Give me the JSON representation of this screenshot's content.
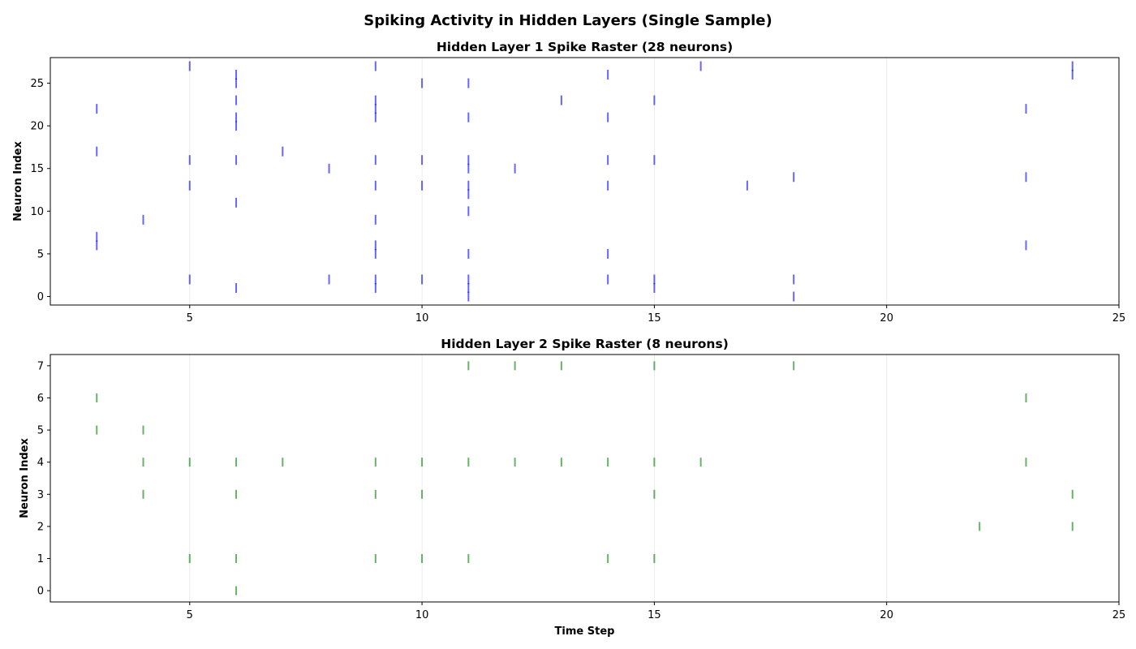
{
  "suptitle": "Spiking Activity in Hidden Layers (Single Sample)",
  "chart_data": [
    {
      "type": "scatter",
      "title": "Hidden Layer 1 Spike Raster (28 neurons)",
      "xlabel": "",
      "ylabel": "Neuron Index",
      "marker": "|",
      "color": "#0000ff",
      "xlim": [
        2,
        25
      ],
      "ylim": [
        -1,
        28
      ],
      "xticks": [
        5,
        10,
        15,
        20,
        25
      ],
      "yticks": [
        0,
        5,
        10,
        15,
        20,
        25
      ],
      "grid_x": true,
      "spikes": [
        [
          3,
          6
        ],
        [
          3,
          7
        ],
        [
          3,
          17
        ],
        [
          3,
          22
        ],
        [
          4,
          9
        ],
        [
          5,
          2
        ],
        [
          5,
          13
        ],
        [
          5,
          16
        ],
        [
          5,
          27
        ],
        [
          6,
          1
        ],
        [
          6,
          11
        ],
        [
          6,
          16
        ],
        [
          6,
          20
        ],
        [
          6,
          21
        ],
        [
          6,
          23
        ],
        [
          6,
          25
        ],
        [
          6,
          26
        ],
        [
          7,
          17
        ],
        [
          8,
          2
        ],
        [
          8,
          15
        ],
        [
          9,
          1
        ],
        [
          9,
          2
        ],
        [
          9,
          5
        ],
        [
          9,
          6
        ],
        [
          9,
          9
        ],
        [
          9,
          13
        ],
        [
          9,
          16
        ],
        [
          9,
          21
        ],
        [
          9,
          22
        ],
        [
          9,
          23
        ],
        [
          9,
          27
        ],
        [
          10,
          2
        ],
        [
          10,
          13
        ],
        [
          10,
          16
        ],
        [
          10,
          25
        ],
        [
          11,
          0
        ],
        [
          11,
          1
        ],
        [
          11,
          2
        ],
        [
          11,
          5
        ],
        [
          11,
          10
        ],
        [
          11,
          12
        ],
        [
          11,
          13
        ],
        [
          11,
          15
        ],
        [
          11,
          16
        ],
        [
          11,
          21
        ],
        [
          11,
          25
        ],
        [
          12,
          15
        ],
        [
          13,
          23
        ],
        [
          14,
          2
        ],
        [
          14,
          5
        ],
        [
          14,
          13
        ],
        [
          14,
          16
        ],
        [
          14,
          21
        ],
        [
          14,
          26
        ],
        [
          15,
          1
        ],
        [
          15,
          2
        ],
        [
          15,
          16
        ],
        [
          15,
          23
        ],
        [
          16,
          27
        ],
        [
          17,
          13
        ],
        [
          18,
          0
        ],
        [
          18,
          2
        ],
        [
          18,
          14
        ],
        [
          23,
          6
        ],
        [
          23,
          14
        ],
        [
          23,
          22
        ],
        [
          24,
          26
        ],
        [
          24,
          27
        ]
      ]
    },
    {
      "type": "scatter",
      "title": "Hidden Layer 2 Spike Raster (8 neurons)",
      "xlabel": "Time Step",
      "ylabel": "Neuron Index",
      "marker": "|",
      "color": "#008000",
      "xlim": [
        2,
        25
      ],
      "ylim": [
        -0.35,
        7.35
      ],
      "xticks": [
        5,
        10,
        15,
        20,
        25
      ],
      "yticks": [
        0,
        1,
        2,
        3,
        4,
        5,
        6,
        7
      ],
      "grid_x": true,
      "spikes": [
        [
          3,
          5
        ],
        [
          3,
          6
        ],
        [
          4,
          3
        ],
        [
          4,
          4
        ],
        [
          4,
          5
        ],
        [
          5,
          1
        ],
        [
          5,
          4
        ],
        [
          6,
          0
        ],
        [
          6,
          1
        ],
        [
          6,
          3
        ],
        [
          6,
          4
        ],
        [
          7,
          4
        ],
        [
          9,
          1
        ],
        [
          9,
          3
        ],
        [
          9,
          4
        ],
        [
          10,
          1
        ],
        [
          10,
          3
        ],
        [
          10,
          4
        ],
        [
          11,
          1
        ],
        [
          11,
          4
        ],
        [
          11,
          7
        ],
        [
          12,
          4
        ],
        [
          12,
          7
        ],
        [
          13,
          4
        ],
        [
          13,
          7
        ],
        [
          14,
          1
        ],
        [
          14,
          4
        ],
        [
          15,
          1
        ],
        [
          15,
          3
        ],
        [
          15,
          4
        ],
        [
          15,
          7
        ],
        [
          16,
          4
        ],
        [
          18,
          7
        ],
        [
          22,
          2
        ],
        [
          23,
          4
        ],
        [
          23,
          6
        ],
        [
          24,
          2
        ],
        [
          24,
          3
        ]
      ]
    }
  ]
}
